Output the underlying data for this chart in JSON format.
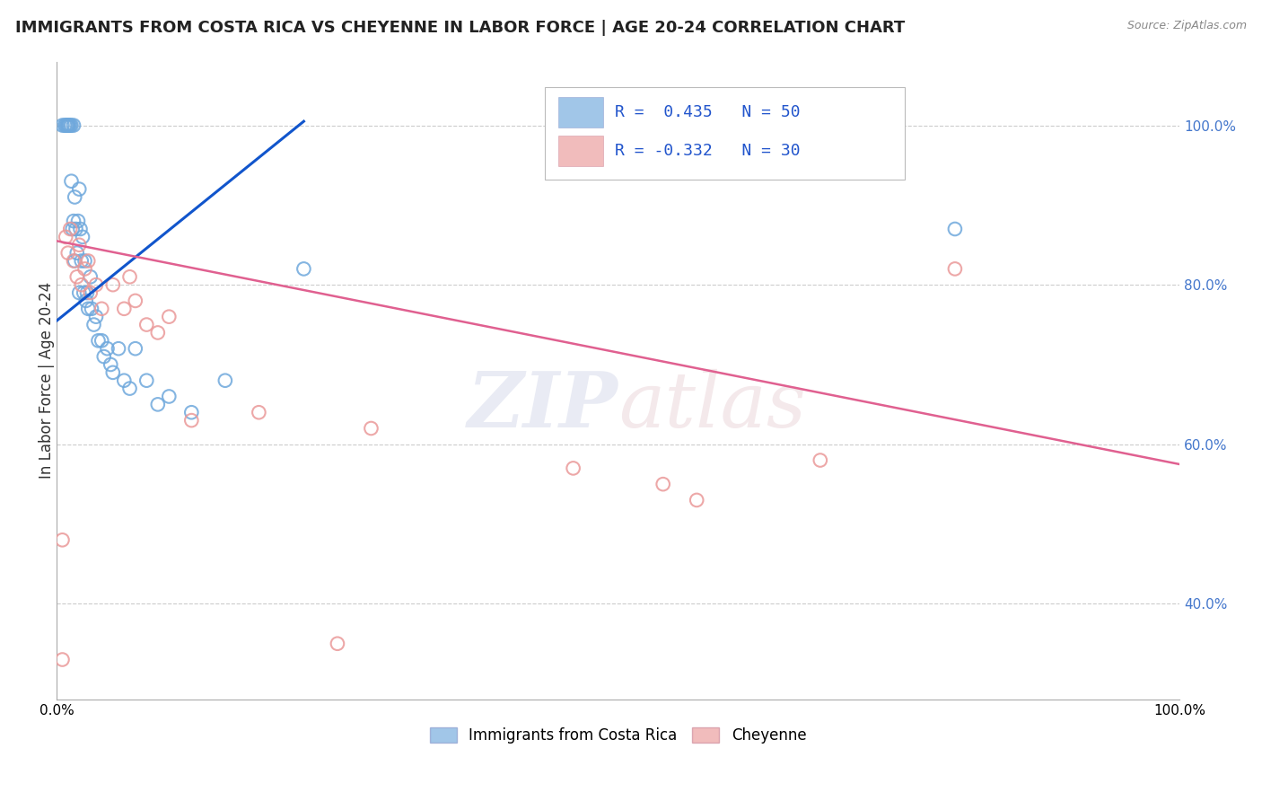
{
  "title": "IMMIGRANTS FROM COSTA RICA VS CHEYENNE IN LABOR FORCE | AGE 20-24 CORRELATION CHART",
  "source_text": "Source: ZipAtlas.com",
  "ylabel": "In Labor Force | Age 20-24",
  "xlim": [
    0.0,
    1.0
  ],
  "ylim": [
    0.28,
    1.08
  ],
  "ytick_labels": [
    "40.0%",
    "60.0%",
    "80.0%",
    "100.0%"
  ],
  "ytick_values": [
    0.4,
    0.6,
    0.8,
    1.0
  ],
  "blue_color": "#6fa8dc",
  "pink_color": "#ea9999",
  "blue_line_color": "#1155cc",
  "pink_line_color": "#e06090",
  "legend_R1": "0.435",
  "legend_N1": "50",
  "legend_R2": "-0.332",
  "legend_N2": "30",
  "blue_line_x0": 0.0,
  "blue_line_y0": 0.755,
  "blue_line_x1": 0.22,
  "blue_line_y1": 1.005,
  "pink_line_x0": 0.0,
  "pink_line_y0": 0.855,
  "pink_line_x1": 1.0,
  "pink_line_y1": 0.575,
  "blue_scatter_x": [
    0.005,
    0.007,
    0.008,
    0.009,
    0.01,
    0.01,
    0.01,
    0.011,
    0.012,
    0.013,
    0.013,
    0.014,
    0.015,
    0.015,
    0.016,
    0.016,
    0.017,
    0.018,
    0.019,
    0.02,
    0.02,
    0.021,
    0.022,
    0.023,
    0.024,
    0.025,
    0.026,
    0.027,
    0.028,
    0.03,
    0.031,
    0.033,
    0.035,
    0.037,
    0.04,
    0.042,
    0.045,
    0.048,
    0.05,
    0.055,
    0.06,
    0.065,
    0.07,
    0.08,
    0.09,
    0.1,
    0.12,
    0.15,
    0.22,
    0.8
  ],
  "blue_scatter_y": [
    1.0,
    1.0,
    1.0,
    1.0,
    1.0,
    1.0,
    1.0,
    1.0,
    1.0,
    1.0,
    0.93,
    0.87,
    1.0,
    0.88,
    0.91,
    0.83,
    0.87,
    0.84,
    0.88,
    0.92,
    0.79,
    0.87,
    0.83,
    0.86,
    0.79,
    0.83,
    0.78,
    0.79,
    0.77,
    0.81,
    0.77,
    0.75,
    0.76,
    0.73,
    0.73,
    0.71,
    0.72,
    0.7,
    0.69,
    0.72,
    0.68,
    0.67,
    0.72,
    0.68,
    0.65,
    0.66,
    0.64,
    0.68,
    0.82,
    0.87
  ],
  "pink_scatter_x": [
    0.005,
    0.008,
    0.01,
    0.012,
    0.015,
    0.018,
    0.02,
    0.022,
    0.025,
    0.028,
    0.03,
    0.035,
    0.04,
    0.05,
    0.06,
    0.065,
    0.07,
    0.08,
    0.09,
    0.1,
    0.12,
    0.18,
    0.25,
    0.28,
    0.46,
    0.54,
    0.57,
    0.68,
    0.005,
    0.8
  ],
  "pink_scatter_y": [
    0.48,
    0.86,
    0.84,
    0.87,
    0.83,
    0.81,
    0.85,
    0.8,
    0.82,
    0.83,
    0.79,
    0.8,
    0.77,
    0.8,
    0.77,
    0.81,
    0.78,
    0.75,
    0.74,
    0.76,
    0.63,
    0.64,
    0.35,
    0.62,
    0.57,
    0.55,
    0.53,
    0.58,
    0.33,
    0.82
  ],
  "bottom_legend_label1": "Immigrants from Costa Rica",
  "bottom_legend_label2": "Cheyenne",
  "background_color": "#ffffff",
  "grid_color": "#cccccc"
}
